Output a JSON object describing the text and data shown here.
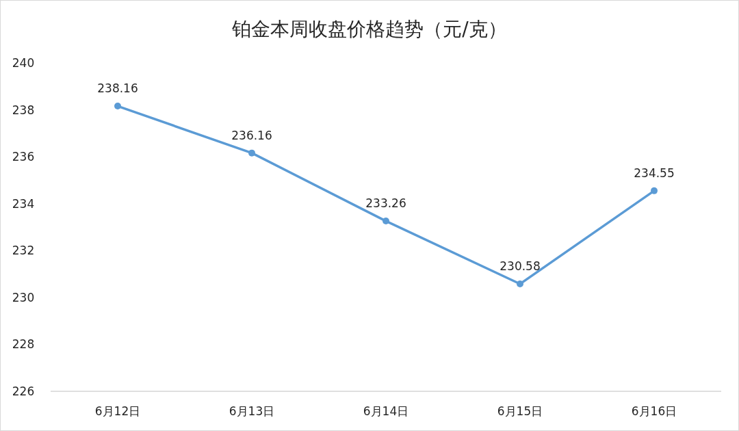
{
  "chart_data": {
    "type": "line",
    "title": "铂金本周收盘价格趋势（元/克）",
    "categories": [
      "6月12日",
      "6月13日",
      "6月14日",
      "6月15日",
      "6月16日"
    ],
    "values": [
      238.16,
      236.16,
      233.26,
      230.58,
      234.55
    ],
    "color": "#5b9bd5",
    "marker": "circle",
    "data_labels": true,
    "ylim": [
      226,
      240
    ],
    "yticks": [
      226,
      228,
      230,
      232,
      234,
      236,
      238,
      240
    ],
    "grid": false
  }
}
